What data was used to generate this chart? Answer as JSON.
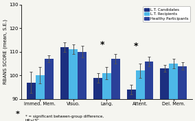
{
  "categories": [
    "Immed. Mem.",
    "Visuo.",
    "Lang.",
    "Attent.",
    "Del. Mem."
  ],
  "groups": [
    "L.T. Candidates",
    "L.T. Recipients",
    "Healthy Participants"
  ],
  "colors": [
    "#1c2f80",
    "#4db8e8",
    "#2a4099"
  ],
  "bar_values": [
    [
      97,
      100,
      107
    ],
    [
      112,
      111,
      110
    ],
    [
      99,
      101,
      107
    ],
    [
      94,
      102,
      106
    ],
    [
      103,
      105,
      104
    ]
  ],
  "bar_errors": [
    [
      4.5,
      3.5,
      1.5
    ],
    [
      2.0,
      2.0,
      2.5
    ],
    [
      2.0,
      2.5,
      2.0
    ],
    [
      2.0,
      3.0,
      2.0
    ],
    [
      1.5,
      2.0,
      1.5
    ]
  ],
  "ylim": [
    90,
    130
  ],
  "yticks": [
    90,
    100,
    110,
    120,
    130
  ],
  "ylabel": "RBANS SCORE (mean, S.E.)",
  "significance_cats": [
    2,
    3
  ],
  "footnote1": "* = significant between-group difference,",
  "footnote2": "HP>LTC.",
  "background_color": "#f5f5f0"
}
